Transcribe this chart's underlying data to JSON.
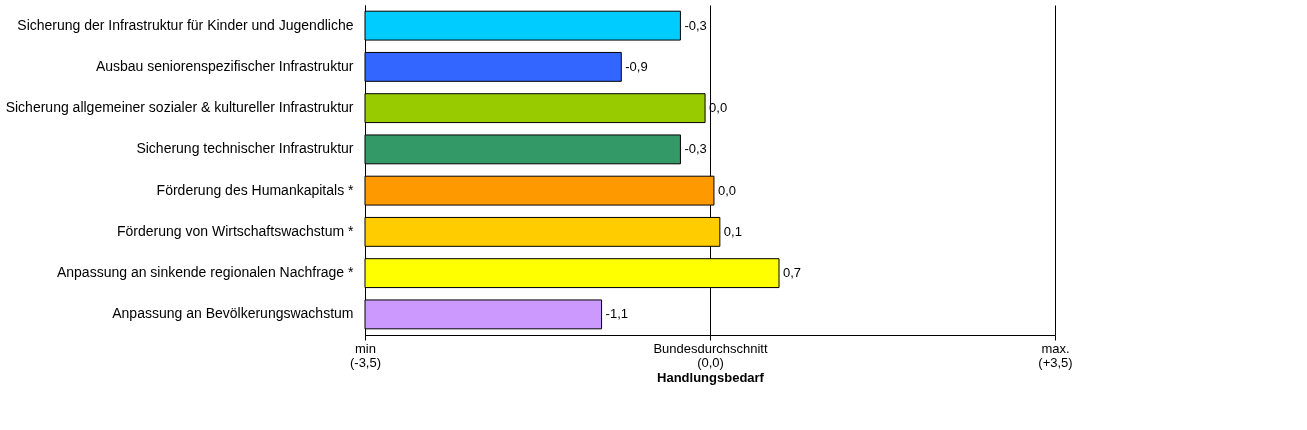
{
  "chart_data": {
    "type": "bar",
    "orientation": "horizontal",
    "categories": [
      "Sicherung der Infrastruktur für Kinder und Jugendliche",
      "Ausbau seniorenspezifischer Infrastruktur",
      "Sicherung allgemeiner sozialer & kultureller Infrastruktur",
      "Sicherung technischer Infrastruktur",
      "Förderung des Humankapitals *",
      "Förderung von Wirtschaftswachstum *",
      "Anpassung an sinkende regionalen Nachfrage *",
      "Anpassung an Bevölkerungswachstum"
    ],
    "base": [
      -3.5,
      -3.5,
      -3.5,
      -3.5,
      -3.5,
      -3.5,
      -3.5,
      -3.5
    ],
    "values": [
      3.2,
      2.6,
      3.45,
      3.2,
      3.54,
      3.6,
      4.2,
      2.4
    ],
    "value_labels": [
      "-0,3",
      "-0,9",
      "0,0",
      "-0,3",
      "0,0",
      "0,1",
      "0,7",
      "-1,1"
    ],
    "colors": [
      "#00ccff",
      "#3366ff",
      "#99cc00",
      "#339966",
      "#ff9900",
      "#ffcc00",
      "#ffff00",
      "#cc99ff"
    ],
    "xlim": [
      -3.5,
      3.5
    ],
    "xticks": [
      {
        "value": -3.5,
        "label": "min\n(-3,5)"
      },
      {
        "value": 0,
        "label": "Bundesdurchschnitt\n(0,0)"
      },
      {
        "value": 3.5,
        "label": "max.\n(+3,5)"
      }
    ],
    "xlabel": "Handlungsbedarf",
    "grid": "x",
    "legend": false
  }
}
